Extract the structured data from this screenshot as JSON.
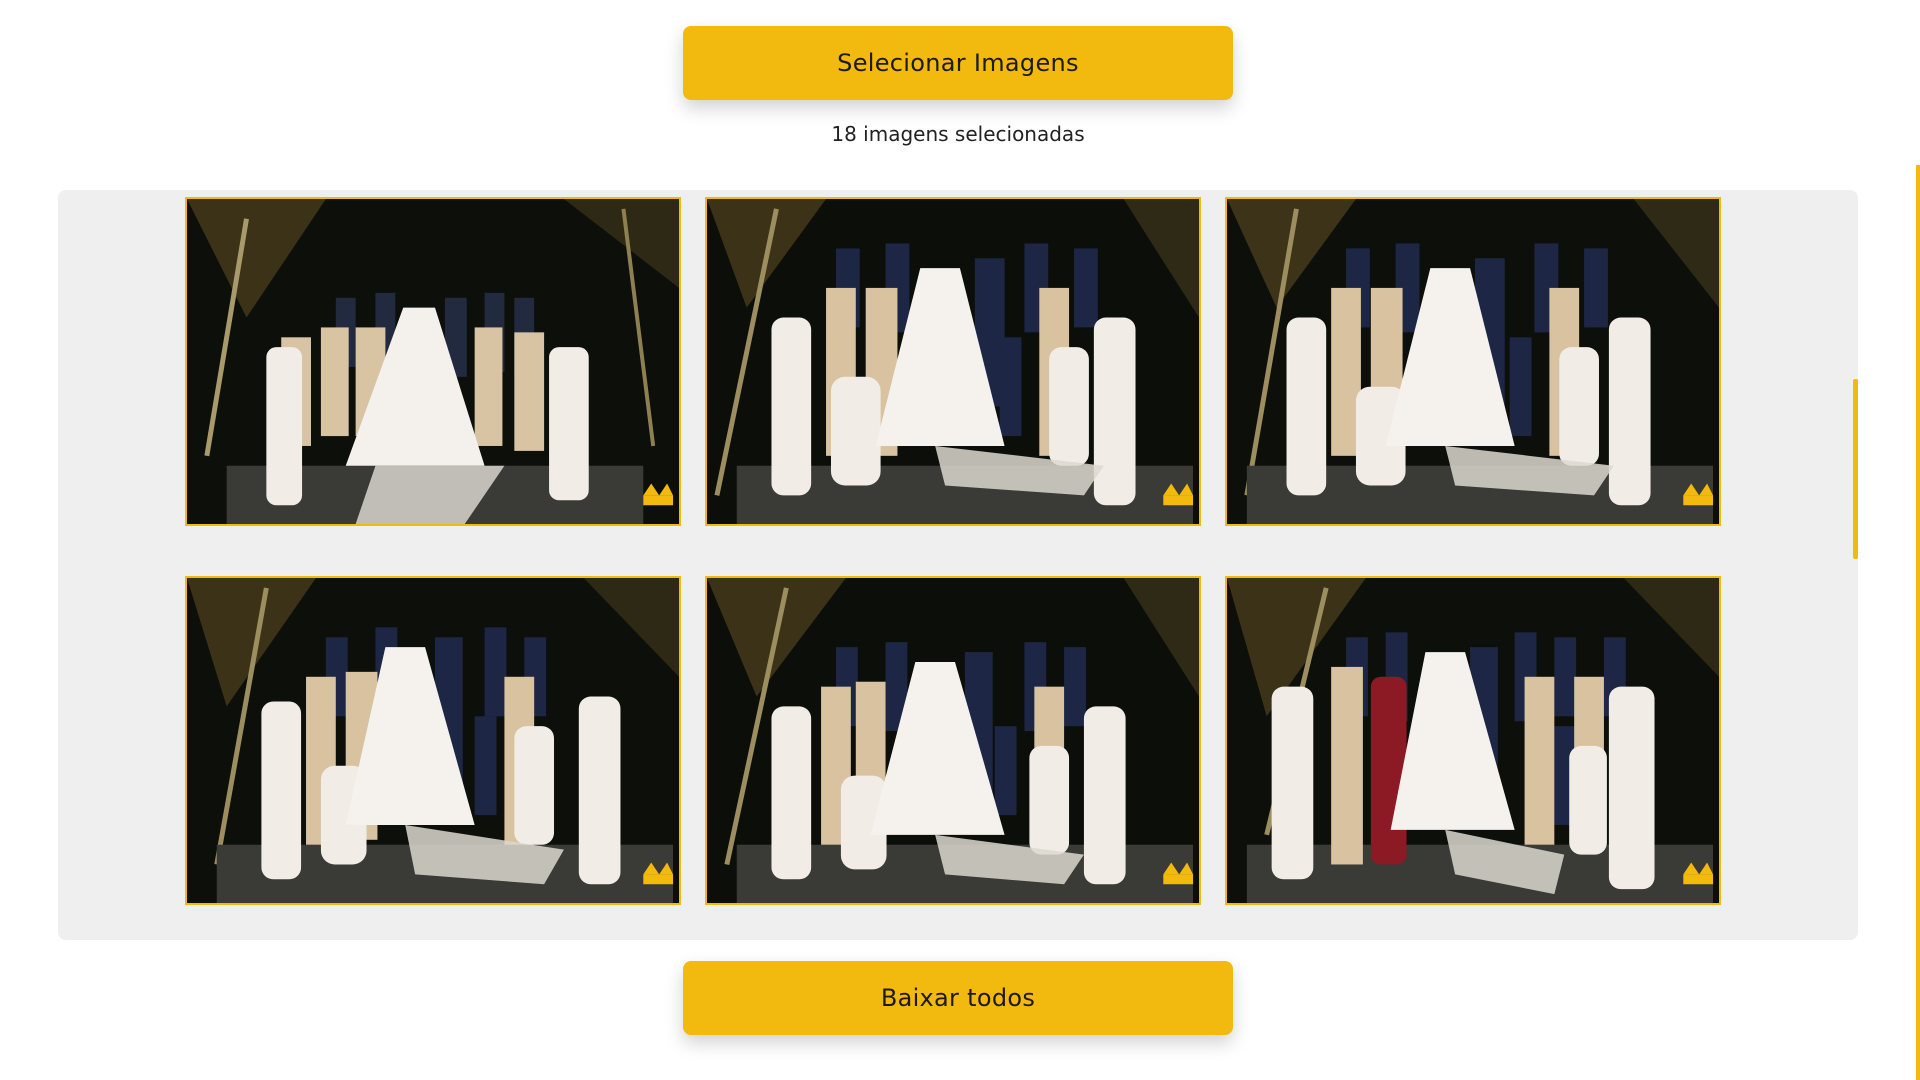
{
  "header": {
    "select_button_label": "Selecionar Imagens",
    "selected_count_text": "18 imagens selecionadas"
  },
  "gallery": {
    "images": [
      {
        "description_icon": "wedding-group-photo"
      },
      {
        "description_icon": "wedding-group-photo"
      },
      {
        "description_icon": "wedding-group-photo"
      },
      {
        "description_icon": "wedding-group-photo"
      },
      {
        "description_icon": "wedding-group-photo"
      },
      {
        "description_icon": "wedding-group-photo"
      }
    ]
  },
  "footer": {
    "download_button_label": "Baixar todos"
  },
  "colors": {
    "accent": "#f2b90e",
    "panel": "#efefef",
    "text": "#222222"
  }
}
